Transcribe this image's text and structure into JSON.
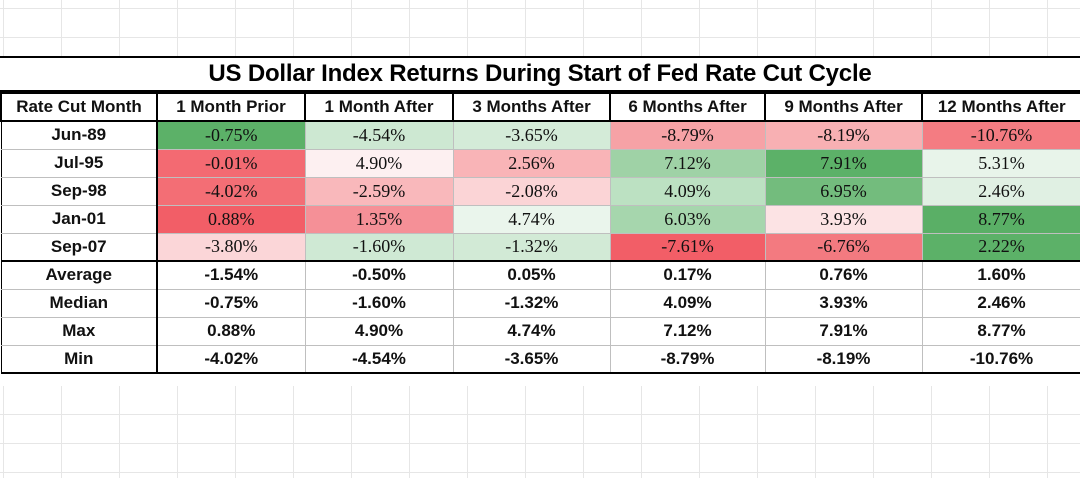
{
  "chart_data": {
    "type": "table",
    "title": "US Dollar Index Returns During Start of Fed Rate Cut Cycle",
    "corner_header": "Rate Cut Month",
    "columns": [
      "1 Month Prior",
      "1 Month After",
      "3 Months After",
      "6 Months After",
      "9 Months After",
      "12 Months After"
    ],
    "rows": [
      {
        "label": "Jun-89",
        "values": [
          "-0.75%",
          "-4.54%",
          "-3.65%",
          "-8.79%",
          "-8.19%",
          "-10.76%"
        ],
        "colors": [
          "#5cb168",
          "#cde8d2",
          "#d4ebd8",
          "#f6a2a6",
          "#f8b0b3",
          "#f47c82"
        ]
      },
      {
        "label": "Jul-95",
        "values": [
          "-0.01%",
          "4.90%",
          "2.56%",
          "7.12%",
          "7.91%",
          "5.31%"
        ],
        "colors": [
          "#f36a72",
          "#fdf0f1",
          "#f9b4b7",
          "#9fd2a6",
          "#5cb168",
          "#e8f4ea"
        ]
      },
      {
        "label": "Sep-98",
        "values": [
          "-4.02%",
          "-2.59%",
          "-2.08%",
          "4.09%",
          "6.95%",
          "2.46%"
        ],
        "colors": [
          "#f36e75",
          "#f9b8bb",
          "#fbd4d6",
          "#bce1c2",
          "#73bc7d",
          "#e0f0e3"
        ]
      },
      {
        "label": "Jan-01",
        "values": [
          "0.88%",
          "1.35%",
          "4.74%",
          "6.03%",
          "3.93%",
          "8.77%"
        ],
        "colors": [
          "#f25e67",
          "#f59097",
          "#eaf5ec",
          "#a6d6ad",
          "#fce3e4",
          "#5aaf66"
        ]
      },
      {
        "label": "Sep-07",
        "values": [
          "-3.80%",
          "-1.60%",
          "-1.32%",
          "-7.61%",
          "-6.76%",
          "2.22%"
        ],
        "colors": [
          "#fbd6d8",
          "#cfe9d4",
          "#d2eaD6",
          "#f25e67",
          "#f37a80",
          "#5cb168"
        ]
      }
    ],
    "stats": [
      {
        "label": "Average",
        "values": [
          "-1.54%",
          "-0.50%",
          "0.05%",
          "0.17%",
          "0.76%",
          "1.60%"
        ]
      },
      {
        "label": "Median",
        "values": [
          "-0.75%",
          "-1.60%",
          "-1.32%",
          "4.09%",
          "3.93%",
          "2.46%"
        ]
      },
      {
        "label": "Max",
        "values": [
          "0.88%",
          "4.90%",
          "4.74%",
          "7.12%",
          "7.91%",
          "8.77%"
        ]
      },
      {
        "label": "Min",
        "values": [
          "-4.02%",
          "-4.54%",
          "-3.65%",
          "-8.79%",
          "-8.19%",
          "-10.76%"
        ]
      }
    ]
  }
}
